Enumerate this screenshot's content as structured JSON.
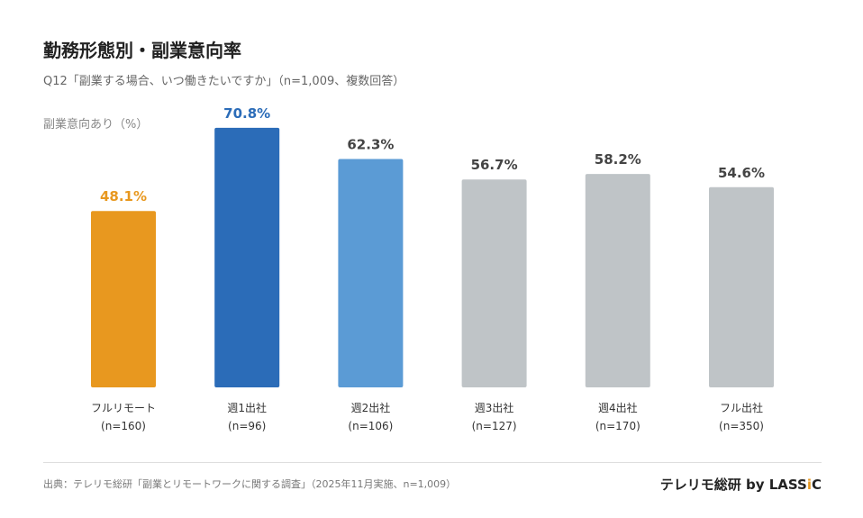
{
  "title": "勤務形態別・副業意向率",
  "subtitle": "Q12「副業する場合、いつ働きたいですか」（n=1,009、複数回答）",
  "source": "出典：テレリモ総研「副業とリモートワークに関する調査」（2025年11月実施、n=1,009）",
  "brand": {
    "pre": "テレリモ総研 by LASS",
    "highlight": "i",
    "post": "C",
    "highlight_color": "#e8981f"
  },
  "chart_data": {
    "type": "bar",
    "title": "勤務形態別・副業意向率",
    "ylabel": "副業意向あり（%）",
    "ylim": [
      0,
      100
    ],
    "grid": false,
    "categories": [
      "フルリモート",
      "週1出社",
      "週2出社",
      "週3出社",
      "週4出社",
      "フル出社"
    ],
    "sample_sizes": [
      "(n=160)",
      "(n=96)",
      "(n=106)",
      "(n=127)",
      "(n=170)",
      "(n=350)"
    ],
    "values": [
      48.1,
      70.8,
      62.3,
      56.7,
      58.2,
      54.6
    ],
    "value_labels": [
      "48.1%",
      "70.8%",
      "62.3%",
      "56.7%",
      "58.2%",
      "54.6%"
    ],
    "bar_colors": [
      "#e8981f",
      "#2b6cb8",
      "#5b9bd5",
      "#bfc4c7",
      "#bfc4c7",
      "#bfc4c7"
    ],
    "label_colors": [
      "#e8981f",
      "#2b6cb8",
      "#444444",
      "#444444",
      "#444444",
      "#444444"
    ]
  }
}
